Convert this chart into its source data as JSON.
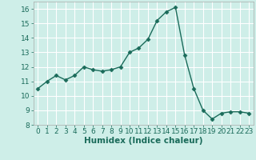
{
  "x": [
    0,
    1,
    2,
    3,
    4,
    5,
    6,
    7,
    8,
    9,
    10,
    11,
    12,
    13,
    14,
    15,
    16,
    17,
    18,
    19,
    20,
    21,
    22,
    23
  ],
  "y": [
    10.5,
    11.0,
    11.4,
    11.1,
    11.4,
    12.0,
    11.8,
    11.7,
    11.8,
    12.0,
    13.0,
    13.3,
    13.9,
    15.2,
    15.8,
    16.1,
    12.8,
    10.5,
    9.0,
    8.4,
    8.8,
    8.9,
    8.9,
    8.8
  ],
  "xlabel": "Humidex (Indice chaleur)",
  "ylim": [
    8,
    16.5
  ],
  "xlim": [
    -0.5,
    23.5
  ],
  "yticks": [
    8,
    9,
    10,
    11,
    12,
    13,
    14,
    15,
    16
  ],
  "xticks": [
    0,
    1,
    2,
    3,
    4,
    5,
    6,
    7,
    8,
    9,
    10,
    11,
    12,
    13,
    14,
    15,
    16,
    17,
    18,
    19,
    20,
    21,
    22,
    23
  ],
  "line_color": "#1a6b5a",
  "marker": "D",
  "marker_size": 2.5,
  "bg_color": "#ceeee8",
  "grid_color": "#ffffff",
  "tick_label_fontsize": 6.5,
  "xlabel_fontsize": 7.5
}
